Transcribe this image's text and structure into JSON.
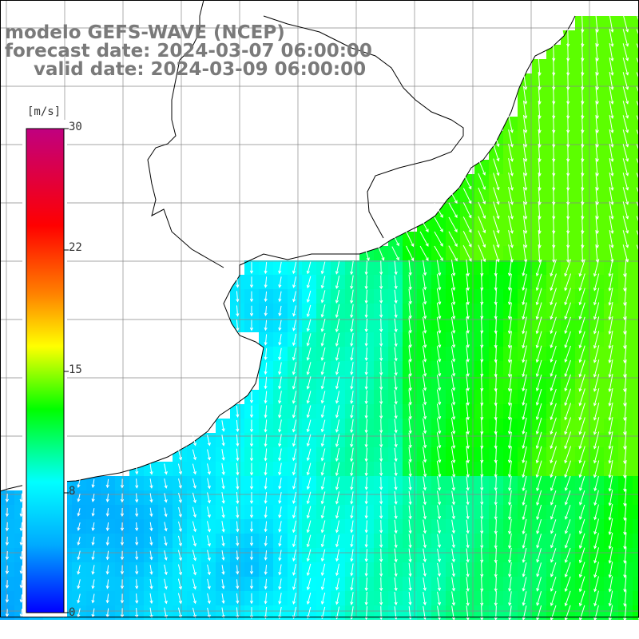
{
  "title": {
    "line1": "modelo GEFS-WAVE (NCEP)",
    "line2": "forecast date: 2024-03-07 06:00:00",
    "line3": "valid date: 2024-03-09 06:00:00"
  },
  "colorbar": {
    "unit": "[m/s]",
    "ticks": [
      "30",
      "22",
      "15",
      "8",
      "0"
    ],
    "min": 0,
    "max": 30,
    "stops": [
      "#0000ff",
      "#00aaff",
      "#00ffff",
      "#00ff00",
      "#ffff00",
      "#ff8000",
      "#ff0000",
      "#c00080"
    ]
  },
  "colors": {
    "land": "#ffffff",
    "coastline": "#000000",
    "grid": "#888888",
    "arrows": "#ffffff"
  },
  "icons": {
    "wind-arrow": "arrow-down"
  }
}
